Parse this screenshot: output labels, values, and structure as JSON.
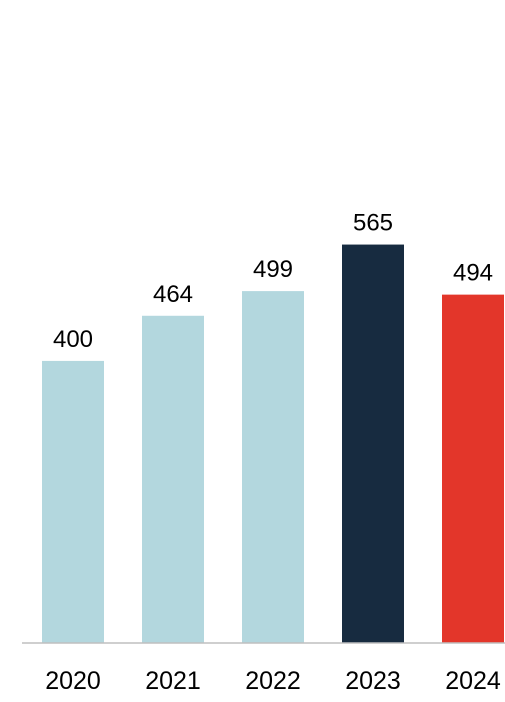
{
  "chart_data": {
    "type": "bar",
    "categories": [
      "2020",
      "2021",
      "2022",
      "2023",
      "2024"
    ],
    "values": [
      400,
      464,
      499,
      565,
      494
    ],
    "data_labels": [
      "400",
      "464",
      "499",
      "565",
      "494"
    ],
    "bar_colors": [
      "#b3d7de",
      "#b3d7de",
      "#b3d7de",
      "#172b40",
      "#e3362a"
    ],
    "axis_color": "#bfbfbf",
    "ylim": [
      0,
      600
    ],
    "grid": false,
    "legend": "none"
  }
}
